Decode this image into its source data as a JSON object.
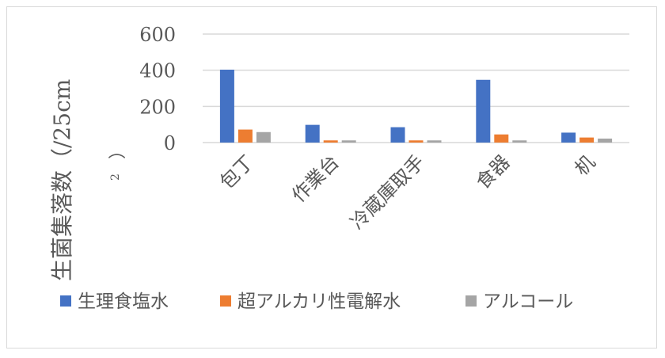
{
  "chart_data": {
    "type": "bar",
    "categories": [
      "包丁",
      "作業台",
      "冷蔵庫取手",
      "食器",
      "机"
    ],
    "series": [
      {
        "name": "生理食塩水",
        "color": "#4472c4",
        "values": [
          403,
          98,
          85,
          347,
          55
        ]
      },
      {
        "name": "超アルカリ性電解水",
        "color": "#ed7d31",
        "values": [
          72,
          12,
          12,
          45,
          28
        ]
      },
      {
        "name": "アルコール",
        "color": "#a5a5a5",
        "values": [
          58,
          12,
          12,
          12,
          22
        ]
      }
    ],
    "ylabel_main": "生菌集落数（/25cm",
    "ylabel_sup": "2",
    "ylabel_close": "）",
    "yticks": [
      "600",
      "400",
      "200",
      "0"
    ],
    "ylim": [
      0,
      600
    ],
    "grid": true,
    "legend_position": "bottom"
  }
}
